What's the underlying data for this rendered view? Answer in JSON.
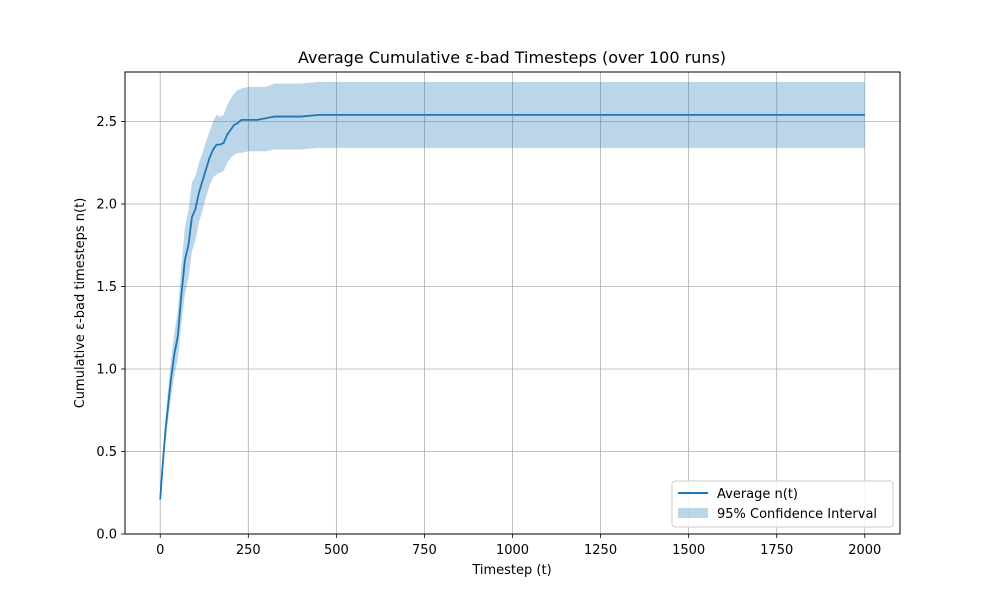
{
  "chart_data": {
    "type": "line",
    "title": "Average Cumulative ε-bad Timesteps (over 100 runs)",
    "xlabel": "Timestep (t)",
    "ylabel": "Cumulative ε-bad timesteps n(t)",
    "xlim": [
      -100,
      2100
    ],
    "ylim": [
      0,
      2.8
    ],
    "xticks": [
      0,
      250,
      500,
      750,
      1000,
      1250,
      1500,
      1750,
      2000
    ],
    "xtick_labels": [
      "0",
      "250",
      "500",
      "750",
      "1000",
      "1250",
      "1500",
      "1750",
      "2000"
    ],
    "yticks": [
      0.0,
      0.5,
      1.0,
      1.5,
      2.0,
      2.5
    ],
    "ytick_labels": [
      "0.0",
      "0.5",
      "1.0",
      "1.5",
      "2.0",
      "2.5"
    ],
    "grid": true,
    "legend_position": "lower-right",
    "series": [
      {
        "name": "Average n(t)",
        "kind": "line",
        "color": "#1f77b4",
        "x": [
          0,
          5,
          10,
          15,
          20,
          30,
          40,
          50,
          60,
          70,
          80,
          90,
          100,
          110,
          120,
          130,
          140,
          150,
          160,
          170,
          180,
          190,
          200,
          210,
          220,
          230,
          250,
          275,
          300,
          325,
          350,
          400,
          450,
          500,
          1000,
          1500,
          2000
        ],
        "y": [
          0.21,
          0.36,
          0.5,
          0.63,
          0.73,
          0.93,
          1.09,
          1.2,
          1.45,
          1.66,
          1.75,
          1.92,
          1.97,
          2.07,
          2.14,
          2.21,
          2.28,
          2.33,
          2.36,
          2.36,
          2.37,
          2.42,
          2.45,
          2.48,
          2.49,
          2.51,
          2.51,
          2.51,
          2.52,
          2.53,
          2.53,
          2.53,
          2.54,
          2.54,
          2.54,
          2.54,
          2.54
        ]
      },
      {
        "name": "95% Confidence Interval",
        "kind": "band",
        "color": "#1f77b4",
        "opacity": 0.3,
        "x": [
          0,
          5,
          10,
          15,
          20,
          30,
          40,
          50,
          60,
          70,
          80,
          90,
          100,
          110,
          120,
          130,
          140,
          150,
          160,
          170,
          180,
          190,
          200,
          210,
          220,
          230,
          250,
          275,
          300,
          325,
          350,
          400,
          450,
          500,
          1000,
          1500,
          2000
        ],
        "lower": [
          0.21,
          0.33,
          0.45,
          0.56,
          0.65,
          0.82,
          0.96,
          1.06,
          1.28,
          1.45,
          1.55,
          1.71,
          1.78,
          1.89,
          1.96,
          2.04,
          2.11,
          2.16,
          2.18,
          2.19,
          2.2,
          2.25,
          2.28,
          2.3,
          2.31,
          2.31,
          2.32,
          2.32,
          2.32,
          2.33,
          2.33,
          2.33,
          2.34,
          2.34,
          2.34,
          2.34,
          2.34
        ],
        "upper": [
          0.21,
          0.4,
          0.56,
          0.7,
          0.82,
          1.04,
          1.22,
          1.35,
          1.62,
          1.86,
          1.96,
          2.13,
          2.17,
          2.25,
          2.31,
          2.38,
          2.44,
          2.5,
          2.54,
          2.53,
          2.54,
          2.6,
          2.64,
          2.67,
          2.69,
          2.7,
          2.71,
          2.71,
          2.71,
          2.73,
          2.73,
          2.73,
          2.74,
          2.74,
          2.74,
          2.74,
          2.74
        ]
      }
    ]
  }
}
